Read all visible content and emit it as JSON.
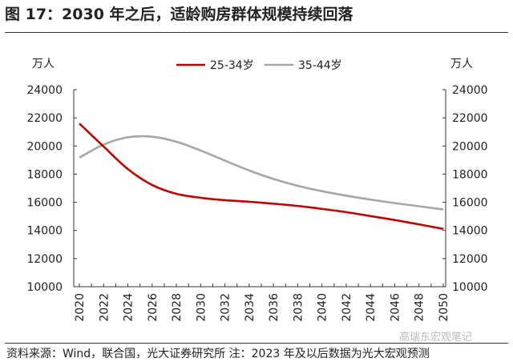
{
  "title": "图 17：2030 年之后，适龄购房群体规模持续回落",
  "source": "资料来源：Wind，联合国，光大证券研究所 注：2023 年及以后数据为光大宏观预测",
  "watermark": "高瑞东宏观笔记",
  "chart_data": {
    "type": "line",
    "title": "",
    "ylabel_left": "万人",
    "ylabel_right": "万人",
    "ylim": [
      10000,
      24000
    ],
    "yticks": [
      10000,
      12000,
      14000,
      16000,
      18000,
      20000,
      22000,
      24000
    ],
    "x": [
      2020,
      2022,
      2024,
      2026,
      2028,
      2030,
      2032,
      2034,
      2036,
      2038,
      2040,
      2042,
      2044,
      2046,
      2048,
      2050
    ],
    "xticks": [
      "2020",
      "2022",
      "2024",
      "2026",
      "2028",
      "2030",
      "2032",
      "2034",
      "2036",
      "2038",
      "2040",
      "2042",
      "2044",
      "2046",
      "2048",
      "2050"
    ],
    "legend_position": "top",
    "grid": false,
    "series": [
      {
        "name": "25-34岁",
        "color": "#c00000",
        "values": [
          21600,
          19960,
          18360,
          17230,
          16600,
          16320,
          16150,
          16040,
          15900,
          15740,
          15530,
          15300,
          15020,
          14740,
          14430,
          14110
        ]
      },
      {
        "name": "35-44岁",
        "color": "#a6a6a6",
        "values": [
          19170,
          20100,
          20620,
          20660,
          20300,
          19680,
          18960,
          18260,
          17660,
          17170,
          16790,
          16470,
          16190,
          15940,
          15720,
          15490
        ]
      }
    ]
  }
}
